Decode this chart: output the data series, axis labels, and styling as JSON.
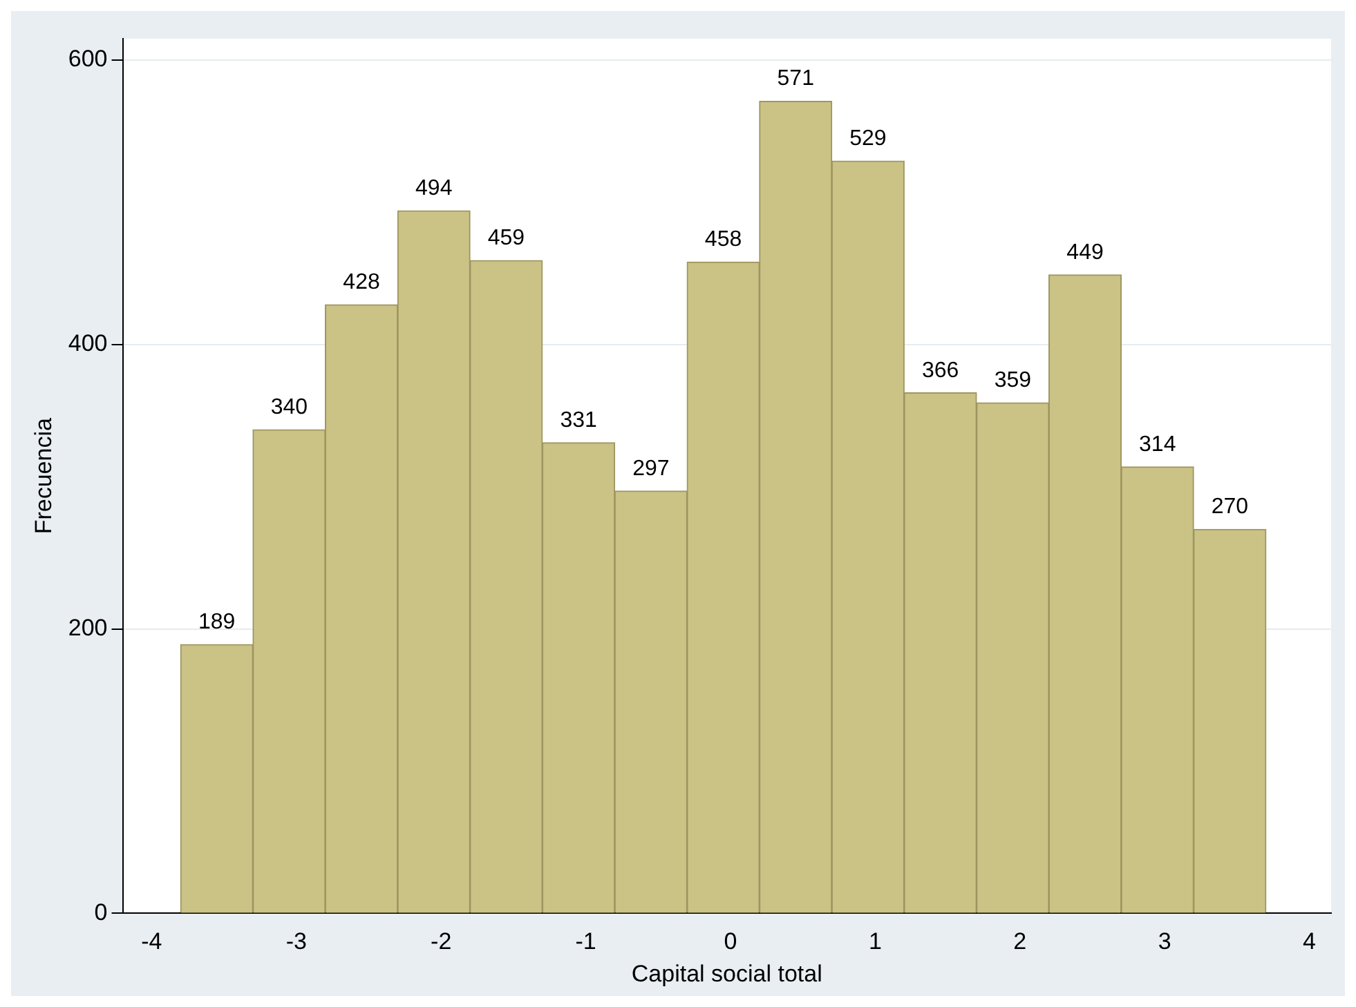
{
  "chart_data": {
    "type": "histogram",
    "xlabel": "Capital social total",
    "ylabel": "Frecuencia",
    "bins": [
      -3.8,
      -3.3,
      -2.8,
      -2.3,
      -1.8,
      -1.3,
      -0.8,
      -0.3,
      0.2,
      0.7,
      1.2,
      1.7,
      2.2,
      2.7,
      3.2,
      3.7
    ],
    "values": [
      189,
      340,
      428,
      494,
      459,
      331,
      297,
      458,
      571,
      529,
      366,
      359,
      449,
      314,
      270
    ],
    "color": "#cbc386",
    "xlim": [
      -4.2,
      4.15
    ],
    "ylim": [
      0,
      615
    ],
    "xticks": [
      -4,
      -3,
      -2,
      -1,
      0,
      1,
      2,
      3,
      4
    ],
    "yticks": [
      0,
      200,
      400,
      600
    ],
    "grid": "y",
    "data_labels": true
  }
}
